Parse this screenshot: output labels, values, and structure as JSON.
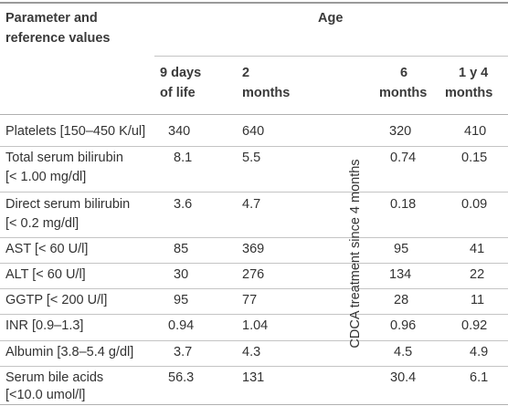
{
  "header": {
    "param_line1": "Parameter and",
    "param_line2": "reference values",
    "age": "Age",
    "cols": [
      {
        "line1": "9 days",
        "line2": "of life"
      },
      {
        "line1": "2",
        "line2": "months"
      },
      {
        "line1": "6",
        "line2": "months"
      },
      {
        "line1": "1 y 4",
        "line2": "months"
      }
    ]
  },
  "treatment_note": "CDCA treatment since 4 months",
  "rows": [
    {
      "label1": "Platelets [150–450 K/ul]",
      "label2": "",
      "v": [
        "340",
        "640",
        "320",
        "410"
      ]
    },
    {
      "label1": "Total serum bilirubin",
      "label2": "[< 1.00 mg/dl]",
      "v": [
        "8.1",
        "5.5",
        "0.74",
        "0.15"
      ]
    },
    {
      "label1": "Direct serum bilirubin",
      "label2": "[< 0.2 mg/dl]",
      "v": [
        "3.6",
        "4.7",
        "0.18",
        "0.09"
      ]
    },
    {
      "label1": "AST [< 60 U/l]",
      "label2": "",
      "v": [
        "85",
        "369",
        "95",
        "41"
      ]
    },
    {
      "label1": "ALT [< 60 U/l]",
      "label2": "",
      "v": [
        "30",
        "276",
        "134",
        "22"
      ]
    },
    {
      "label1": "GGTP [< 200 U/l]",
      "label2": "",
      "v": [
        "95",
        "77",
        "28",
        "11"
      ]
    },
    {
      "label1": "INR [0.9–1.3]",
      "label2": "",
      "v": [
        "0.94",
        "1.04",
        "0.96",
        "0.92"
      ]
    },
    {
      "label1": "Albumin [3.8–5.4 g/dl]",
      "label2": "",
      "v": [
        "3.7",
        "4.3",
        "4.5",
        "4.9"
      ]
    },
    {
      "label1": "Serum bile acids",
      "label2": "[<10.0 umol/l]",
      "v": [
        "56.3",
        "131",
        "30.4",
        "6.1"
      ]
    }
  ]
}
